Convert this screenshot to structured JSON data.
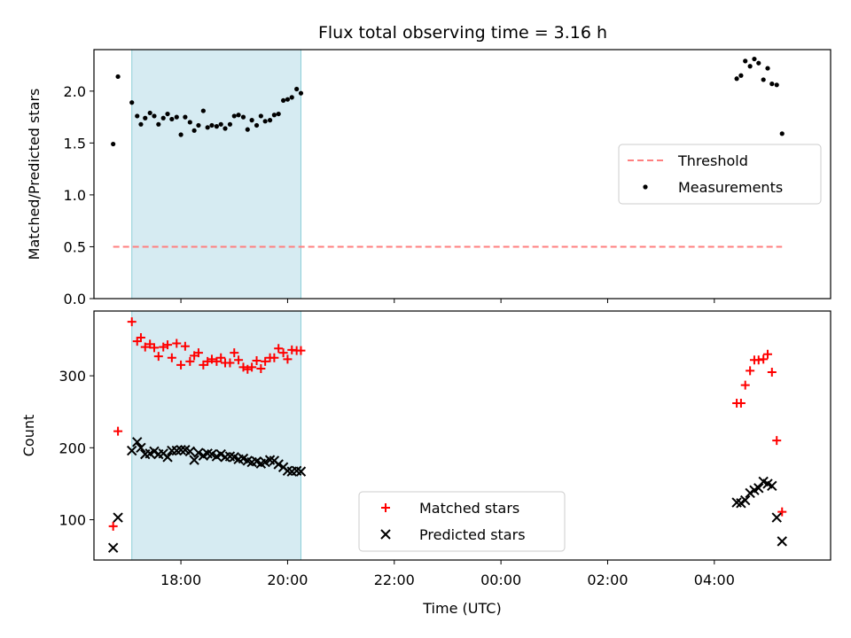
{
  "title": "Flux total observing time = 3.16 h",
  "colors": {
    "threshold": "#ff7f7f",
    "measurement": "#000000",
    "matched": "#ff0000",
    "predicted": "#000000",
    "band_fill": "#add8e6",
    "band_edge": "#8ccfd8"
  },
  "chart_data": [
    {
      "type": "scatter",
      "ylabel": "Matched/Predicted stars",
      "ylim": [
        0,
        2.4
      ],
      "y_ticks": [
        0.0,
        0.5,
        1.0,
        1.5,
        2.0
      ],
      "y_tick_labels": [
        "0.0",
        "0.5",
        "1.0",
        "1.5",
        "2.0"
      ],
      "x_unit": "hours since 00:00 UTC of first day",
      "xlim": [
        16.37,
        30.18
      ],
      "highlight_band": [
        17.08,
        20.25
      ],
      "legend": {
        "placement": "center-right",
        "entries": [
          "Threshold",
          "Measurements"
        ]
      },
      "series": [
        {
          "name": "Threshold",
          "kind": "dashed-line",
          "x": [
            16.73,
            29.27
          ],
          "y": [
            0.5,
            0.5
          ]
        },
        {
          "name": "Measurements",
          "kind": "dot",
          "x": [
            16.73,
            16.82,
            17.08,
            17.18,
            17.25,
            17.33,
            17.42,
            17.5,
            17.58,
            17.67,
            17.75,
            17.83,
            17.92,
            18.0,
            18.08,
            18.17,
            18.25,
            18.33,
            18.42,
            18.5,
            18.58,
            18.67,
            18.75,
            18.83,
            18.92,
            19.0,
            19.08,
            19.17,
            19.25,
            19.33,
            19.42,
            19.5,
            19.58,
            19.67,
            19.75,
            19.83,
            19.92,
            20.0,
            20.08,
            20.17,
            20.25,
            28.42,
            28.5,
            28.58,
            28.67,
            28.75,
            28.83,
            28.92,
            29.0,
            29.08,
            29.17,
            29.27
          ],
          "y": [
            1.49,
            2.14,
            1.89,
            1.76,
            1.68,
            1.74,
            1.79,
            1.76,
            1.68,
            1.74,
            1.78,
            1.73,
            1.75,
            1.58,
            1.75,
            1.7,
            1.62,
            1.67,
            1.81,
            1.65,
            1.67,
            1.66,
            1.68,
            1.64,
            1.68,
            1.76,
            1.77,
            1.75,
            1.63,
            1.72,
            1.67,
            1.76,
            1.71,
            1.72,
            1.77,
            1.78,
            1.91,
            1.92,
            1.94,
            2.02,
            1.98,
            2.12,
            2.15,
            2.29,
            2.24,
            2.31,
            2.27,
            2.11,
            2.22,
            2.07,
            2.06,
            1.59
          ]
        }
      ]
    },
    {
      "type": "scatter",
      "xlabel": "Time (UTC)",
      "ylabel": "Count",
      "ylim": [
        44,
        390
      ],
      "y_ticks": [
        100,
        200,
        300
      ],
      "y_tick_labels": [
        "100",
        "200",
        "300"
      ],
      "x_unit": "hours since 00:00 UTC of first day",
      "xlim": [
        16.37,
        30.18
      ],
      "x_ticks": [
        18,
        20,
        22,
        24,
        26,
        28
      ],
      "x_tick_labels": [
        "18:00",
        "20:00",
        "22:00",
        "00:00",
        "02:00",
        "04:00"
      ],
      "highlight_band": [
        17.08,
        20.25
      ],
      "legend": {
        "placement": "lower-center",
        "entries": [
          "Matched stars",
          "Predicted stars"
        ]
      },
      "series": [
        {
          "name": "Matched stars",
          "kind": "plus",
          "x": [
            16.73,
            16.82,
            17.08,
            17.18,
            17.25,
            17.33,
            17.42,
            17.5,
            17.58,
            17.67,
            17.75,
            17.83,
            17.92,
            18.0,
            18.08,
            18.17,
            18.25,
            18.33,
            18.42,
            18.5,
            18.58,
            18.67,
            18.75,
            18.83,
            18.92,
            19.0,
            19.08,
            19.17,
            19.25,
            19.33,
            19.42,
            19.5,
            19.58,
            19.67,
            19.75,
            19.83,
            19.92,
            20.0,
            20.08,
            20.17,
            20.25,
            28.42,
            28.5,
            28.58,
            28.67,
            28.75,
            28.83,
            28.92,
            29.0,
            29.08,
            29.17,
            29.27
          ],
          "y": [
            91,
            223,
            375,
            348,
            353,
            340,
            344,
            339,
            327,
            340,
            343,
            325,
            345,
            315,
            341,
            320,
            328,
            332,
            315,
            320,
            323,
            320,
            325,
            318,
            318,
            332,
            322,
            312,
            309,
            312,
            321,
            310,
            320,
            325,
            325,
            338,
            332,
            323,
            336,
            335,
            335,
            262,
            262,
            287,
            307,
            322,
            322,
            323,
            330,
            305,
            210,
            111
          ]
        },
        {
          "name": "Predicted stars",
          "kind": "x",
          "x": [
            16.73,
            16.82,
            17.08,
            17.18,
            17.25,
            17.33,
            17.42,
            17.5,
            17.58,
            17.67,
            17.75,
            17.83,
            17.92,
            18.0,
            18.08,
            18.17,
            18.25,
            18.33,
            18.42,
            18.5,
            18.58,
            18.67,
            18.75,
            18.83,
            18.92,
            19.0,
            19.08,
            19.17,
            19.25,
            19.33,
            19.42,
            19.5,
            19.58,
            19.67,
            19.75,
            19.83,
            19.92,
            20.0,
            20.08,
            20.17,
            20.25,
            28.42,
            28.5,
            28.58,
            28.67,
            28.75,
            28.83,
            28.92,
            29.0,
            29.08,
            29.17,
            29.27
          ],
          "y": [
            61,
            103,
            196,
            208,
            200,
            191,
            192,
            195,
            191,
            192,
            187,
            196,
            196,
            197,
            197,
            195,
            183,
            193,
            189,
            192,
            191,
            188,
            191,
            187,
            188,
            187,
            184,
            185,
            182,
            180,
            181,
            178,
            180,
            183,
            182,
            177,
            173,
            168,
            167,
            168,
            167,
            124,
            123,
            127,
            137,
            141,
            144,
            153,
            150,
            147,
            103,
            70
          ]
        }
      ]
    }
  ]
}
